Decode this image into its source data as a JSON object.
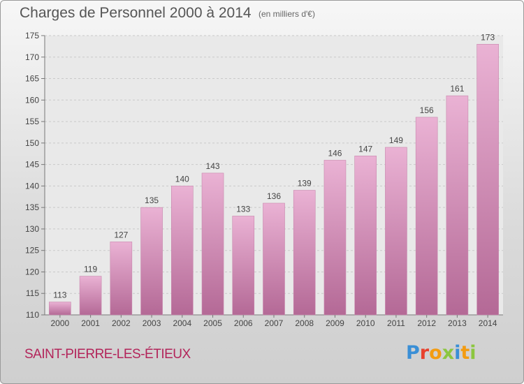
{
  "header": {
    "title": "Charges de Personnel 2000 à 2014",
    "subtitle": "(en milliers d'€)"
  },
  "footer": {
    "commune": "SAINT-PIERRE-LES-ÉTIEUX",
    "logo_letters": [
      "P",
      "r",
      "o",
      "x",
      "i",
      "t",
      "i"
    ],
    "logo_colors": [
      "#3a8fd6",
      "#e8412c",
      "#f39c12",
      "#8cc63f",
      "#3a8fd6",
      "#f39c12",
      "#8cc63f"
    ]
  },
  "colors": {
    "bar_top": "#eab2d4",
    "bar_bottom": "#b46996",
    "grid": "#c9c9c9",
    "axis_text": "#444444",
    "commune": "#b3245a"
  },
  "chart_data": {
    "type": "bar",
    "title": "Charges de Personnel 2000 à 2014",
    "subtitle": "(en milliers d'€)",
    "categories": [
      "2000",
      "2001",
      "2002",
      "2003",
      "2004",
      "2005",
      "2006",
      "2007",
      "2008",
      "2009",
      "2010",
      "2011",
      "2012",
      "2013",
      "2014"
    ],
    "values": [
      113,
      119,
      127,
      135,
      140,
      143,
      133,
      136,
      139,
      146,
      147,
      149,
      156,
      161,
      173
    ],
    "ylim": [
      110,
      175
    ],
    "yticks": [
      110,
      115,
      120,
      125,
      130,
      135,
      140,
      145,
      150,
      155,
      160,
      165,
      170,
      175
    ],
    "grid": true,
    "data_labels": true
  }
}
